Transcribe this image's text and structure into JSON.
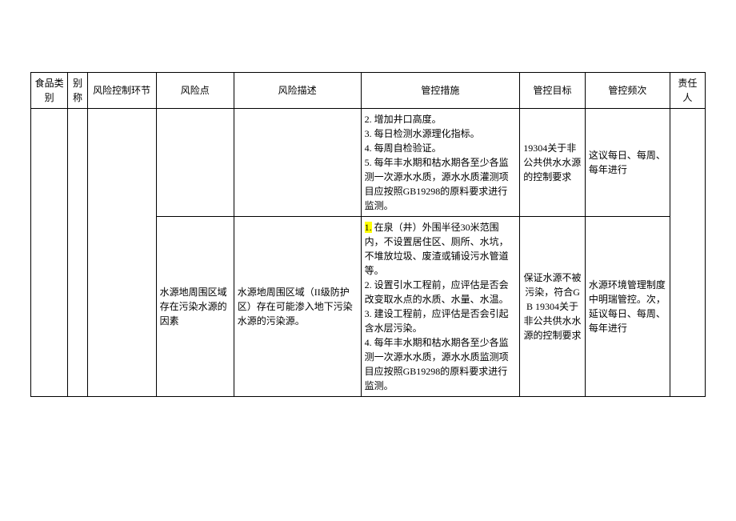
{
  "headers": {
    "col1": "食品类别",
    "col2": "别称",
    "col3": "风险控制环节",
    "col4": "风险点",
    "col5": "风险描述",
    "col6": "管控措施",
    "col7": "管控目标",
    "col8": "管控频次",
    "col9": "责任人"
  },
  "row1": {
    "measures_l1": "2. 增加井口高度。",
    "measures_l2": "3. 每日检测水源理化指标。",
    "measures_l3": "4. 每周自检验证。",
    "measures_l4": "5. 每年丰水期和枯水期各至少各监测一次源水水质，源水水质灌测项目应按照GB19298的原料要求进行监测。",
    "target": "19304关于非公共供水水源的控制要求",
    "freq": "这议每日、每周、每年进行"
  },
  "row2": {
    "risk_point": "水源地周围区域存在污染水源的因素",
    "risk_desc": "水源地周围区域（II级防护区）存在可能渗入地下污染水源的污染源。",
    "m_hl": "1.",
    "m1": " 在泉（井）外围半径30米范围内，不设置居住区、厕所、水坑，不堆放垃圾、废渣或铺设污水管道等。",
    "m2": "2. 设置引水工程前，应评估是否会改变取水点的水质、水量、水温。",
    "m3": "3. 建设工程前，应评估是否会引起含水层污染。",
    "m4": "4. 每年丰水期和枯水期各至少各监测一次源水水质，源水水质监测项目应按照GB19298的原料要求进行监测。",
    "target": "保证水源不被污染，符合GB 19304关于非公共供水水源的控制要求",
    "freq": "水源环境管理制度中明瑞管控。次，延议每日、每周、每年进行"
  }
}
